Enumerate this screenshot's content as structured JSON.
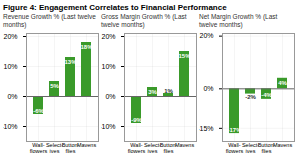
{
  "title": "Figure 4: Engagement Correlates to Financial Performance",
  "chart_data": [
    {
      "type": "bar",
      "title": "Revenue Growth % (Last twelve months)",
      "categories": [
        "Wall-\nflowers",
        "Select-\nives",
        "Button-\nflies",
        "Mavens"
      ],
      "values": [
        -6,
        5,
        13,
        18
      ],
      "value_labels": [
        "-6%",
        "5%",
        "13%",
        "18%"
      ],
      "color": "#3a9a2a",
      "ylim": [
        -15,
        21
      ],
      "yticks": [
        {
          "value": -10,
          "label": "-10%"
        },
        {
          "value": 0,
          "label": "0%"
        },
        {
          "value": 10,
          "label": "10%"
        },
        {
          "value": 20,
          "label": "20%"
        }
      ],
      "grid": true,
      "data_labels": true
    },
    {
      "type": "bar",
      "title": "Gross Margin Growth % (Last twelve months)",
      "categories": [
        "Wall-\nflowers",
        "Select-\nives",
        "Button-\nflies",
        "Mavens"
      ],
      "values": [
        -9,
        3,
        1,
        15
      ],
      "value_labels": [
        "-9%",
        "3%",
        "1%",
        "15%"
      ],
      "color": "#3a9a2a",
      "ylim": [
        -15,
        21
      ],
      "yticks": [
        {
          "value": -10,
          "label": "-10%"
        },
        {
          "value": 0,
          "label": "0%"
        },
        {
          "value": 10,
          "label": "10%"
        },
        {
          "value": 20,
          "label": "20%"
        }
      ],
      "grid": true,
      "data_labels": true
    },
    {
      "type": "bar",
      "title": "Net Margin Growth % (Last twelve months)",
      "categories": [
        "Wall-\nflowers",
        "Select-\nives",
        "Button-\nflies",
        "Mavens"
      ],
      "values": [
        -17,
        -2,
        -4,
        4
      ],
      "value_labels": [
        "-17%",
        "-2%",
        "-4%",
        "4%"
      ],
      "color": "#3a9a2a",
      "ylim": [
        -20,
        21
      ],
      "yticks": [
        {
          "value": -15,
          "label": "-15%"
        },
        {
          "value": 0,
          "label": "0%"
        },
        {
          "value": 20,
          "label": "20%"
        }
      ],
      "grid": true,
      "data_labels": true
    }
  ]
}
